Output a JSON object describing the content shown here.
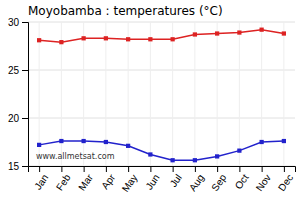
{
  "chart_data": {
    "type": "line",
    "title": "Moyobamba : temperatures (°C)",
    "categories": [
      "Jan",
      "Feb",
      "Mar",
      "Apr",
      "May",
      "Jun",
      "Jul",
      "Aug",
      "Sep",
      "Oct",
      "Nov",
      "Dec"
    ],
    "series": [
      {
        "color": "#dd2222",
        "marker": "square",
        "values": [
          28.1,
          27.9,
          28.3,
          28.3,
          28.2,
          28.2,
          28.2,
          28.7,
          28.8,
          28.9,
          29.2,
          28.8
        ]
      },
      {
        "color": "#2222cc",
        "marker": "square",
        "values": [
          17.2,
          17.6,
          17.6,
          17.5,
          17.1,
          16.2,
          15.6,
          15.6,
          16.0,
          16.6,
          17.5,
          17.6
        ]
      }
    ],
    "ylim": [
      15,
      30
    ],
    "yticks": [
      15,
      20,
      25,
      30
    ],
    "grid": true,
    "annotations": [
      "www.allmetsat.com"
    ]
  }
}
